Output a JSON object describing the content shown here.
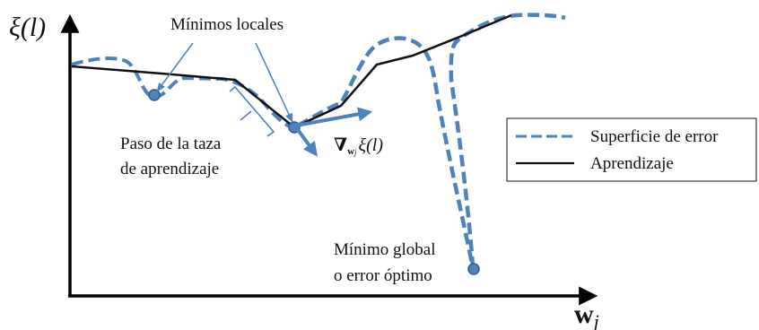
{
  "axes": {
    "y_label": "ξ(l)",
    "x_label": "w",
    "x_label_subscript": "j"
  },
  "annotations": {
    "local_minima": "Mínimos locales",
    "learning_step_line1": "Paso de la taza",
    "learning_step_line2": "de aprendizaje",
    "gradient_symbol": "∇",
    "gradient_subscript": "w",
    "gradient_subscript2": "j",
    "gradient_function": "ξ(l)",
    "global_min_line1": "Mínimo global",
    "global_min_line2": "o error óptimo"
  },
  "legend": {
    "error_surface": "Superficie de error",
    "learning": "Aprendizaje"
  },
  "colors": {
    "surface": "#4f81bd",
    "learning": "#111111",
    "marker": "#4f81bd",
    "marker_edge": "#2e5a8e",
    "axis": "#000000"
  }
}
